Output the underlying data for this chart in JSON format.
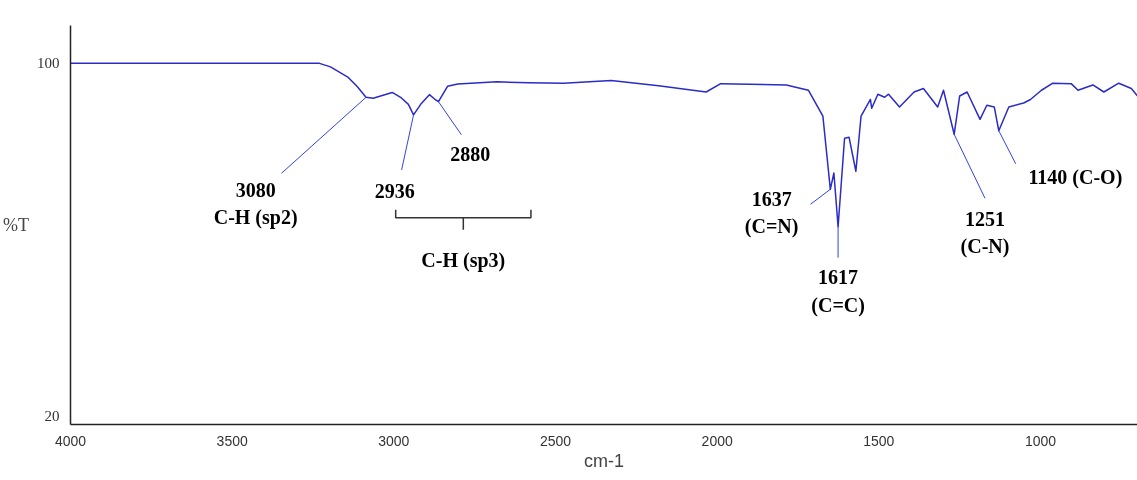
{
  "chart_data": {
    "type": "line",
    "xlabel": "cm-1",
    "ylabel": "%T",
    "x": [
      4000,
      3230,
      3196,
      3141,
      3114,
      3086,
      3064,
      3005,
      2979,
      2955,
      2939,
      2917,
      2890,
      2874,
      2862,
      2834,
      2802,
      2681,
      2583,
      2475,
      2328,
      2181,
      2034,
      1989,
      1786,
      1718,
      1673,
      1650,
      1639,
      1626,
      1606,
      1592,
      1571,
      1555,
      1526,
      1522,
      1503,
      1482,
      1470,
      1436,
      1391,
      1362,
      1318,
      1300,
      1267,
      1250,
      1227,
      1187,
      1166,
      1143,
      1129,
      1098,
      1052,
      1031,
      997,
      962,
      905,
      884,
      838,
      804,
      758,
      719,
      700
    ],
    "series": [
      {
        "color": "#2b2bc8",
        "values": [
          100,
          100,
          99.2,
          96.8,
          94.8,
          92.3,
          92.1,
          93.4,
          92.3,
          90.7,
          88.3,
          90.7,
          92.9,
          91.9,
          91.3,
          94.8,
          95.3,
          95.8,
          95.6,
          95.5,
          96.1,
          94.9,
          93.5,
          95.4,
          95.1,
          93.9,
          88.0,
          71.4,
          75.1,
          62.9,
          83.0,
          83.2,
          75.5,
          88.0,
          91.8,
          89.8,
          93.0,
          92.3,
          93.0,
          90.1,
          93.5,
          94.3,
          90.1,
          93.9,
          83.9,
          92.6,
          93.5,
          87.3,
          90.5,
          90.1,
          84.7,
          90.1,
          91.0,
          91.8,
          93.9,
          95.5,
          95.4,
          93.9,
          95.1,
          93.5,
          95.5,
          94.3,
          92.6
        ]
      }
    ],
    "xlim": [
      4000,
      700
    ],
    "ylim": [
      18,
      108.6
    ],
    "xticks": [
      4000,
      3500,
      3000,
      2500,
      2000,
      1500,
      1000
    ],
    "yticks": [
      20,
      100
    ],
    "grid": false,
    "annotations": [
      {
        "text": "3080\nC-H (sp2)",
        "x": 3086,
        "y": 92.3
      },
      {
        "text": "2936",
        "x": 2939,
        "y": 88.3
      },
      {
        "text": "2880",
        "x": 2862,
        "y": 91.3
      },
      "C-H (sp3)",
      {
        "text": "1637\n(C=N)",
        "x": 1650,
        "y": 71.4
      },
      {
        "text": "1617\n(C=C)",
        "x": 1626,
        "y": 62.9
      },
      {
        "text": "1251\n(C-N)",
        "x": 1267,
        "y": 83.9
      },
      {
        "text": "1140 (C-O)",
        "x": 1129,
        "y": 84.7
      }
    ]
  }
}
